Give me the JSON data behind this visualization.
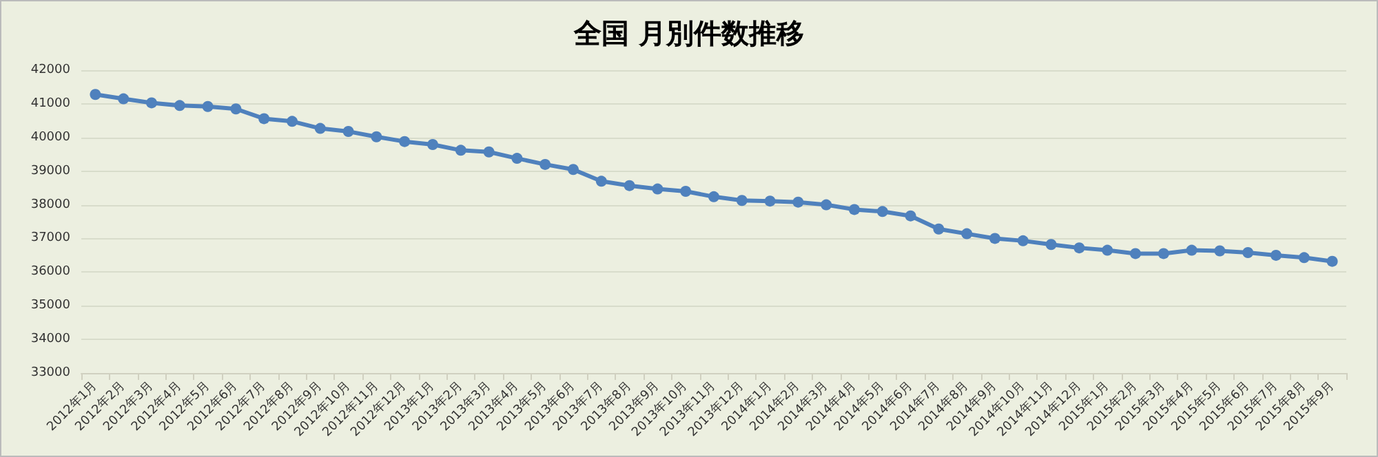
{
  "chart_data": {
    "type": "line",
    "title": "全国 月別件数推移",
    "categories": [
      "2012年1月",
      "2012年2月",
      "2012年3月",
      "2012年4月",
      "2012年5月",
      "2012年6月",
      "2012年7月",
      "2012年8月",
      "2012年9月",
      "2012年10月",
      "2012年11月",
      "2012年12月",
      "2013年1月",
      "2013年2月",
      "2013年3月",
      "2013年4月",
      "2013年5月",
      "2013年6月",
      "2013年7月",
      "2013年8月",
      "2013年9月",
      "2013年10月",
      "2013年11月",
      "2013年12月",
      "2014年1月",
      "2014年2月",
      "2014年3月",
      "2014年4月",
      "2014年5月",
      "2014年6月",
      "2014年7月",
      "2014年8月",
      "2014年9月",
      "2014年10月",
      "2014年11月",
      "2014年12月",
      "2015年1月",
      "2015年2月",
      "2015年3月",
      "2015年4月",
      "2015年5月",
      "2015年6月",
      "2015年7月",
      "2015年8月",
      "2015年9月"
    ],
    "series": [
      {
        "color": "#4f81bd",
        "values": [
          41280,
          41150,
          41030,
          40950,
          40920,
          40850,
          40560,
          40480,
          40270,
          40180,
          40020,
          39880,
          39790,
          39620,
          39570,
          39380,
          39200,
          39050,
          38700,
          38570,
          38470,
          38400,
          38240,
          38130,
          38110,
          38080,
          38000,
          37860,
          37800,
          37670,
          37280,
          37140,
          37000,
          36930,
          36820,
          36720,
          36650,
          36550,
          36550,
          36650,
          36630,
          36580,
          36500,
          36430,
          36320
        ]
      }
    ],
    "ylim": [
      33000,
      42000
    ],
    "yticks": [
      33000,
      34000,
      35000,
      36000,
      37000,
      38000,
      39000,
      40000,
      41000,
      42000
    ],
    "grid": "y",
    "marker": "circle",
    "line_style": "solid"
  }
}
